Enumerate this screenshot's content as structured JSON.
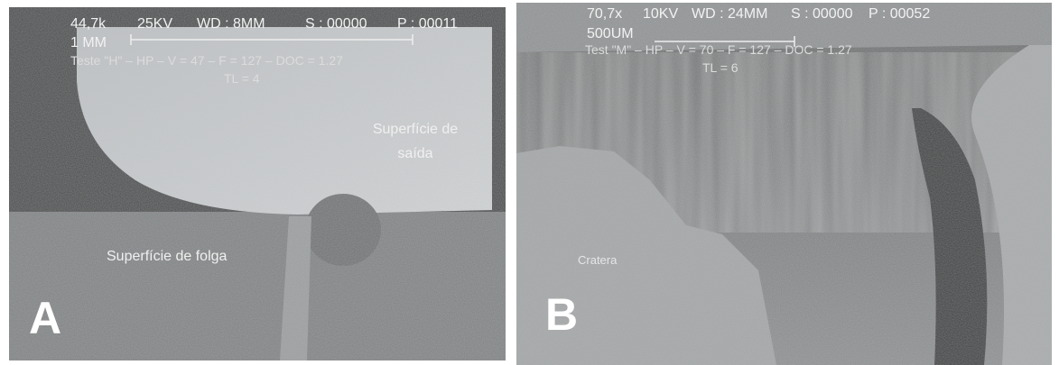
{
  "panels": [
    {
      "header": [
        "44,7k",
        "25KV",
        "WD : 8MM",
        "S : 00000",
        "P : 00011"
      ],
      "scale": "1 MM",
      "test": "Teste \"H\" – HP – V = 47 – F = 127 – DOC = 1.27",
      "tl": "TL = 4",
      "labels": [
        [
          "Superfície de",
          "saída"
        ],
        [
          "Superfície de folga"
        ]
      ],
      "letter": "A"
    },
    {
      "header": [
        "70,7x",
        "10KV",
        "WD : 24MM",
        "S : 00000",
        "P : 00052"
      ],
      "scale": "500UM",
      "test": "Test \"M\" – HP – V = 70 – F = 127 – DOC = 1.27",
      "tl": "TL = 6",
      "labels": [
        [
          "Cratera"
        ]
      ],
      "letter": "B"
    }
  ]
}
